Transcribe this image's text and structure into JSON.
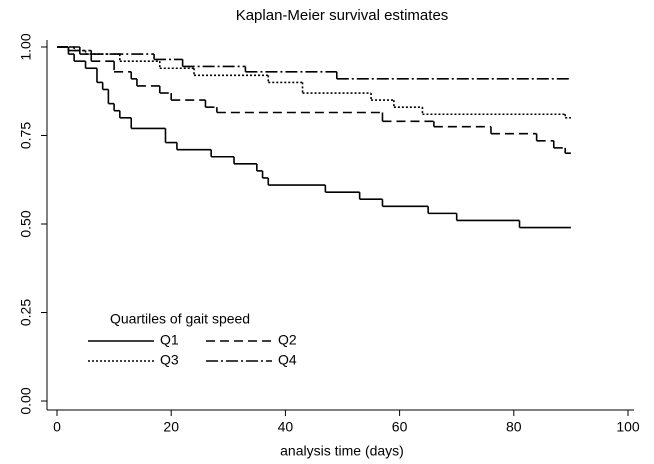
{
  "chart_data": {
    "type": "step",
    "title": "Kaplan-Meier survival estimates",
    "x_label": "analysis time (days)",
    "legend_title": "Quartiles of gait speed",
    "legend_position": "lower left",
    "grid": false,
    "xlim": [
      0,
      100
    ],
    "xticks": [
      0,
      20,
      40,
      60,
      80,
      100
    ],
    "ylim": [
      0,
      1
    ],
    "yticks": [
      {
        "value": 0,
        "label": "0.00"
      },
      {
        "value": 0.25,
        "label": "0.25"
      },
      {
        "value": 0.5,
        "label": "0.50"
      },
      {
        "value": 0.75,
        "label": "0.75"
      },
      {
        "value": 1,
        "label": "1.00"
      }
    ],
    "series": [
      {
        "name": "Q1",
        "color": "#000000",
        "dash": "none",
        "x": [
          0,
          2,
          3,
          5,
          7,
          8,
          9,
          10,
          11,
          13,
          19,
          21,
          27,
          31,
          35,
          36,
          37,
          47,
          53,
          57,
          65,
          70,
          81,
          90
        ],
        "values": [
          1,
          0.98,
          0.96,
          0.94,
          0.9,
          0.88,
          0.84,
          0.82,
          0.8,
          0.77,
          0.73,
          0.71,
          0.69,
          0.67,
          0.65,
          0.63,
          0.61,
          0.59,
          0.57,
          0.55,
          0.53,
          0.51,
          0.49,
          0.49
        ]
      },
      {
        "name": "Q2",
        "color": "#000000",
        "dash": "9 5",
        "x": [
          0,
          4,
          6,
          10,
          13,
          14,
          18,
          20,
          26,
          28,
          57,
          66,
          76,
          84,
          87,
          89,
          90
        ],
        "values": [
          1,
          0.98,
          0.96,
          0.93,
          0.91,
          0.89,
          0.87,
          0.85,
          0.83,
          0.815,
          0.79,
          0.775,
          0.755,
          0.735,
          0.715,
          0.7,
          0.7
        ]
      },
      {
        "name": "Q3",
        "color": "#000000",
        "dash": "2 2",
        "x": [
          0,
          3,
          5,
          11,
          18,
          24,
          37,
          43,
          55,
          59,
          64,
          89,
          90
        ],
        "values": [
          1,
          0.99,
          0.98,
          0.96,
          0.94,
          0.92,
          0.9,
          0.87,
          0.85,
          0.83,
          0.81,
          0.8,
          0.8
        ]
      },
      {
        "name": "Q4",
        "color": "#000000",
        "dash": "12 3 2 3",
        "x": [
          0,
          2,
          6,
          17,
          22,
          33,
          49,
          90
        ],
        "values": [
          1,
          0.99,
          0.98,
          0.965,
          0.945,
          0.93,
          0.91,
          0.91
        ]
      }
    ]
  }
}
